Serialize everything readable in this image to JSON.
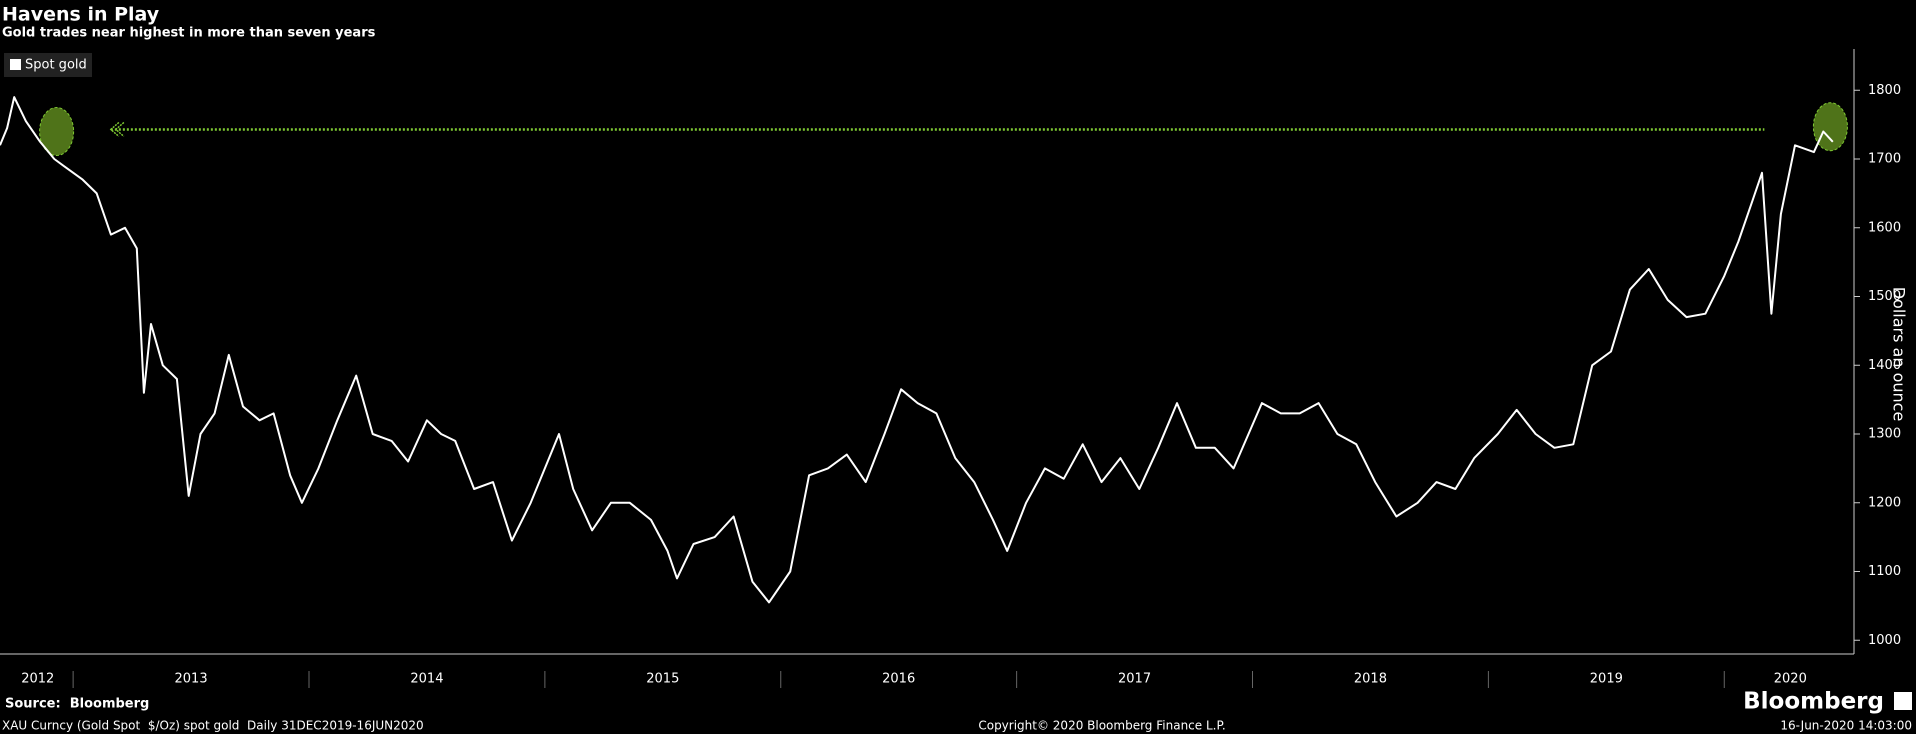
{
  "chart_data": {
    "type": "line",
    "title": "Havens in Play",
    "subtitle": "Gold trades near highest in more than seven years",
    "y_label": "Dollars an ounce",
    "source": "Source:  Bloomberg",
    "brand": "Bloomberg",
    "footer": {
      "left": "XAU Curncy (Gold Spot  $/Oz) spot gold  Daily 31DEC2019-16JUN2020",
      "center": "Copyright© 2020 Bloomberg Finance L.P.",
      "right": "16-Jun-2020 14:03:00"
    },
    "x": [
      2012.69,
      2012.72,
      2012.75,
      2012.8,
      2012.86,
      2012.92,
      2012.96,
      2013.04,
      2013.1,
      2013.16,
      2013.22,
      2013.27,
      2013.3,
      2013.33,
      2013.38,
      2013.44,
      2013.49,
      2013.54,
      2013.6,
      2013.66,
      2013.72,
      2013.79,
      2013.85,
      2013.92,
      2013.97,
      2014.04,
      2014.12,
      2014.2,
      2014.27,
      2014.35,
      2014.42,
      2014.5,
      2014.56,
      2014.62,
      2014.7,
      2014.78,
      2014.86,
      2014.94,
      2015.06,
      2015.12,
      2015.2,
      2015.28,
      2015.36,
      2015.45,
      2015.52,
      2015.56,
      2015.63,
      2015.72,
      2015.8,
      2015.88,
      2015.95,
      2016.04,
      2016.12,
      2016.2,
      2016.28,
      2016.36,
      2016.44,
      2016.51,
      2016.58,
      2016.66,
      2016.74,
      2016.82,
      2016.9,
      2016.96,
      2017.04,
      2017.12,
      2017.2,
      2017.28,
      2017.36,
      2017.44,
      2017.52,
      2017.6,
      2017.68,
      2017.76,
      2017.84,
      2017.92,
      2018.04,
      2018.12,
      2018.2,
      2018.28,
      2018.36,
      2018.44,
      2018.52,
      2018.61,
      2018.7,
      2018.78,
      2018.86,
      2018.94,
      2019.04,
      2019.12,
      2019.2,
      2019.28,
      2019.36,
      2019.44,
      2019.52,
      2019.6,
      2019.68,
      2019.76,
      2019.84,
      2019.92,
      2020.0,
      2020.06,
      2020.12,
      2020.16,
      2020.2,
      2020.24,
      2020.3,
      2020.38,
      2020.42,
      2020.46
    ],
    "series": [
      {
        "name": "Spot gold",
        "color": "#ffffff",
        "values": [
          1720,
          1745,
          1790,
          1755,
          1725,
          1700,
          1690,
          1670,
          1650,
          1590,
          1600,
          1570,
          1360,
          1460,
          1400,
          1380,
          1210,
          1300,
          1330,
          1415,
          1340,
          1320,
          1330,
          1240,
          1200,
          1250,
          1320,
          1385,
          1300,
          1290,
          1260,
          1320,
          1300,
          1290,
          1220,
          1230,
          1145,
          1200,
          1300,
          1220,
          1160,
          1200,
          1200,
          1175,
          1130,
          1090,
          1140,
          1150,
          1180,
          1085,
          1055,
          1100,
          1240,
          1250,
          1270,
          1230,
          1300,
          1365,
          1345,
          1330,
          1265,
          1230,
          1175,
          1130,
          1200,
          1250,
          1235,
          1285,
          1230,
          1265,
          1220,
          1280,
          1345,
          1280,
          1280,
          1250,
          1345,
          1330,
          1330,
          1345,
          1300,
          1285,
          1230,
          1180,
          1200,
          1230,
          1220,
          1265,
          1300,
          1335,
          1300,
          1280,
          1285,
          1400,
          1420,
          1510,
          1540,
          1495,
          1470,
          1475,
          1530,
          1580,
          1640,
          1680,
          1475,
          1620,
          1720,
          1710,
          1740,
          1725
        ]
      }
    ],
    "xlim": [
      2012.69,
      2020.55
    ],
    "xticks": [
      {
        "value": 2012.85,
        "label": "2012"
      },
      {
        "value": 2013.5,
        "label": "2013"
      },
      {
        "value": 2014.5,
        "label": "2014"
      },
      {
        "value": 2015.5,
        "label": "2015"
      },
      {
        "value": 2016.5,
        "label": "2016"
      },
      {
        "value": 2017.5,
        "label": "2017"
      },
      {
        "value": 2018.5,
        "label": "2018"
      },
      {
        "value": 2019.5,
        "label": "2019"
      },
      {
        "value": 2020.28,
        "label": "2020"
      }
    ],
    "xminorticks": [
      2013,
      2014,
      2015,
      2016,
      2017,
      2018,
      2019,
      2020
    ],
    "ylim": [
      980,
      1860
    ],
    "yticks": [
      1000,
      1100,
      1200,
      1300,
      1400,
      1500,
      1600,
      1700,
      1800
    ],
    "reference_line": {
      "value": 1743,
      "x": [
        2013.16,
        2020.17
      ],
      "color": "#7dc832"
    },
    "highlights": [
      {
        "x": 2012.93,
        "y": 1740
      },
      {
        "x": 2020.45,
        "y": 1747
      }
    ],
    "highlight_color": "#6a9a22"
  }
}
